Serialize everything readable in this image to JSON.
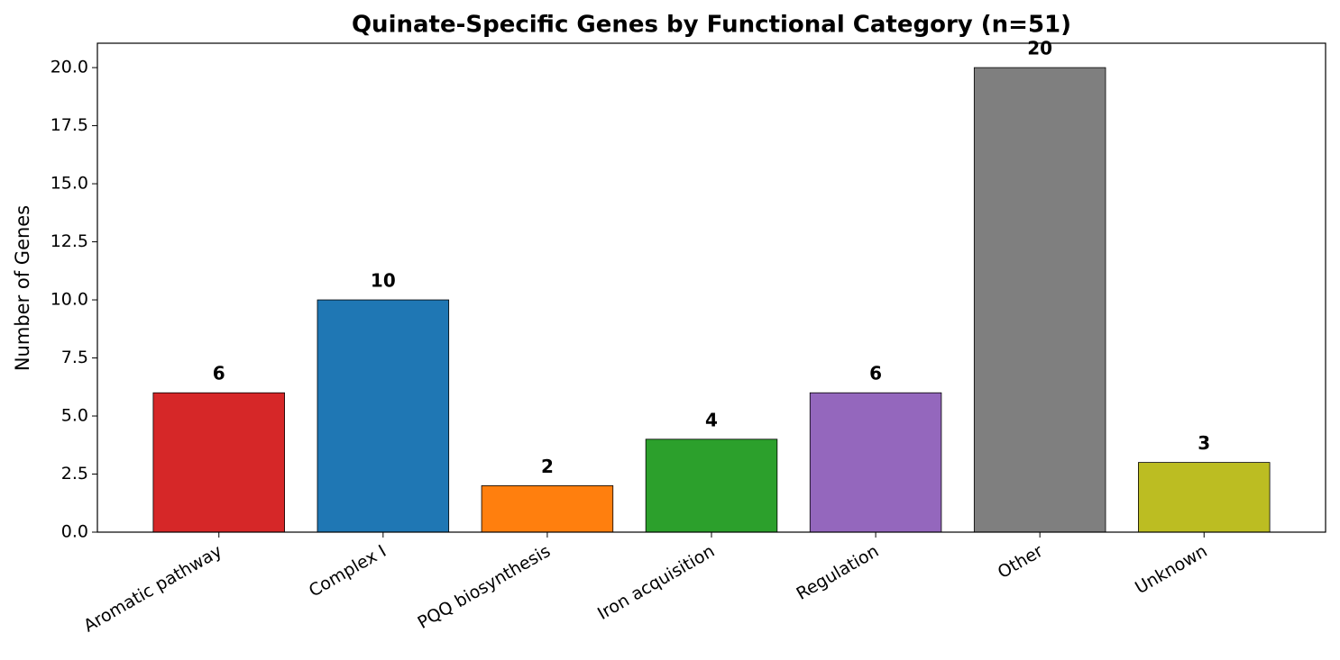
{
  "chart_data": {
    "type": "bar",
    "title": "Quinate-Specific Genes by Functional Category (n=51)",
    "ylabel": "Number of Genes",
    "categories": [
      "Aromatic pathway",
      "Complex I",
      "PQQ biosynthesis",
      "Iron acquisition",
      "Regulation",
      "Other",
      "Unknown"
    ],
    "values": [
      6,
      10,
      2,
      4,
      6,
      20,
      3
    ],
    "colors": [
      "#d62728",
      "#1f77b4",
      "#ff7f0e",
      "#2ca02c",
      "#9467bd",
      "#7f7f7f",
      "#bcbd22"
    ],
    "ylim": [
      0,
      21.05
    ],
    "yticks": [
      {
        "value": 0,
        "label": "0.0"
      },
      2.5,
      {
        "value": 5,
        "label": "5.0"
      },
      7.5,
      {
        "value": 10,
        "label": "10.0"
      },
      12.5,
      {
        "value": 15,
        "label": "15.0"
      },
      17.5,
      {
        "value": 20,
        "label": "20.0"
      }
    ]
  }
}
